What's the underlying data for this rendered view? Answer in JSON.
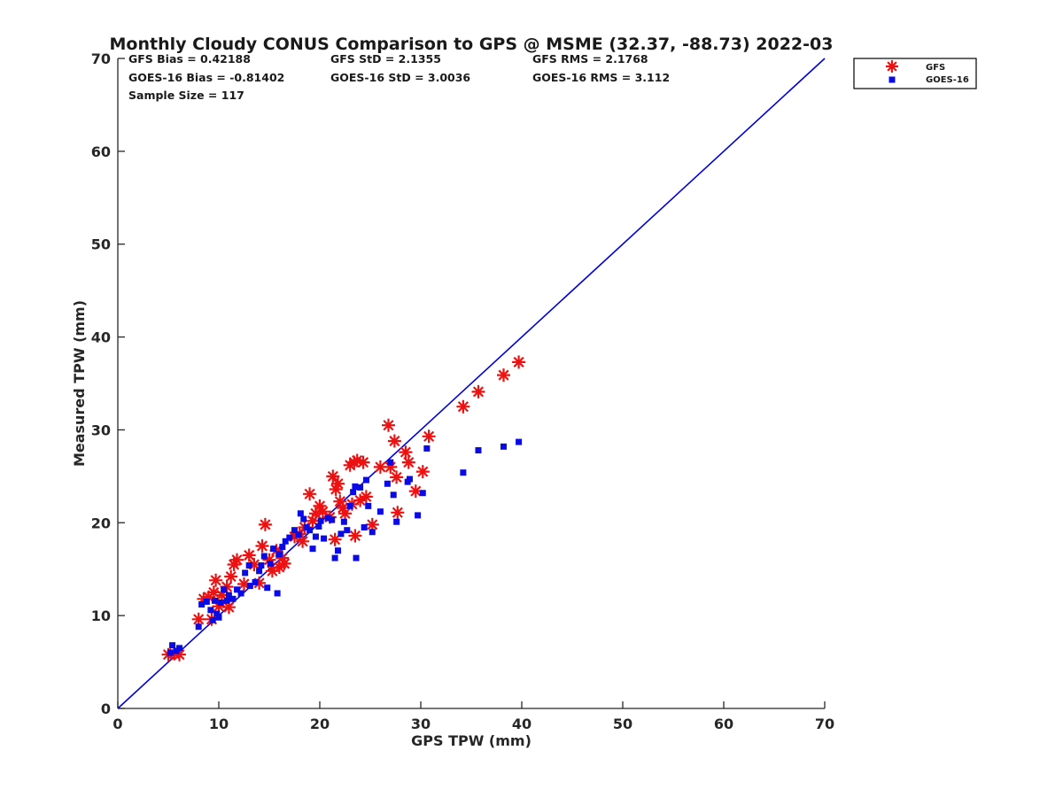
{
  "chart_data": {
    "type": "scatter",
    "title": "Monthly Cloudy CONUS Comparison to GPS @ MSME (32.37, -88.73) 2022-03",
    "xlabel": "GPS TPW (mm)",
    "ylabel": "Measured TPW (mm)",
    "xlim": [
      0,
      70
    ],
    "ylim": [
      0,
      70
    ],
    "xticks": [
      "0",
      "10",
      "20",
      "30",
      "40",
      "50",
      "60",
      "70"
    ],
    "yticks": [
      "0",
      "10",
      "20",
      "30",
      "40",
      "50",
      "60",
      "70"
    ],
    "grid": false,
    "legend_position": "outside-top-right",
    "stats": {
      "gfs_bias": "GFS Bias = 0.42188",
      "goes_bias": "GOES-16 Bias = -0.81402",
      "sample_size": "Sample Size = 117",
      "gfs_std": "GFS StD = 2.1355",
      "goes_std": "GOES-16 StD = 3.0036",
      "gfs_rms": "GFS RMS = 2.1768",
      "goes_rms": "GOES-16 RMS = 3.112"
    },
    "reference_line": {
      "x": [
        0,
        70
      ],
      "y": [
        0,
        70
      ],
      "color": "#0000dd"
    },
    "series": [
      {
        "name": "GFS",
        "marker": "asterisk",
        "color": "#ee1111",
        "points": [
          [
            5.0,
            5.8
          ],
          [
            5.6,
            5.9
          ],
          [
            6.1,
            5.8
          ],
          [
            8.0,
            9.6
          ],
          [
            8.5,
            11.8
          ],
          [
            9.0,
            12.0
          ],
          [
            9.3,
            9.6
          ],
          [
            9.5,
            12.5
          ],
          [
            9.7,
            13.8
          ],
          [
            10.0,
            11.0
          ],
          [
            10.3,
            12.2
          ],
          [
            10.8,
            13.1
          ],
          [
            11.0,
            10.9
          ],
          [
            11.2,
            14.2
          ],
          [
            11.5,
            15.5
          ],
          [
            11.8,
            16.0
          ],
          [
            12.5,
            13.4
          ],
          [
            13.0,
            16.5
          ],
          [
            13.5,
            15.5
          ],
          [
            14.0,
            13.5
          ],
          [
            14.3,
            17.5
          ],
          [
            14.6,
            19.8
          ],
          [
            15.0,
            16.0
          ],
          [
            15.3,
            14.8
          ],
          [
            15.7,
            17.0
          ],
          [
            16.0,
            15.2
          ],
          [
            16.3,
            16.2
          ],
          [
            16.5,
            15.6
          ],
          [
            17.5,
            18.5
          ],
          [
            18.0,
            18.8
          ],
          [
            18.3,
            18.0
          ],
          [
            18.5,
            19.5
          ],
          [
            19.0,
            23.1
          ],
          [
            19.3,
            20.2
          ],
          [
            19.6,
            21.0
          ],
          [
            20.0,
            21.8
          ],
          [
            20.3,
            21.2
          ],
          [
            21.0,
            20.6
          ],
          [
            21.3,
            25.0
          ],
          [
            21.5,
            18.2
          ],
          [
            21.6,
            23.6
          ],
          [
            21.8,
            24.2
          ],
          [
            22.0,
            22.3
          ],
          [
            22.3,
            21.6
          ],
          [
            22.5,
            21.0
          ],
          [
            23.0,
            26.2
          ],
          [
            23.2,
            22.0
          ],
          [
            23.4,
            26.5
          ],
          [
            23.5,
            18.6
          ],
          [
            23.7,
            26.7
          ],
          [
            24.0,
            22.4
          ],
          [
            24.3,
            26.5
          ],
          [
            24.6,
            22.8
          ],
          [
            25.2,
            19.8
          ],
          [
            26.0,
            26.0
          ],
          [
            26.8,
            30.5
          ],
          [
            27.0,
            26.0
          ],
          [
            27.4,
            28.8
          ],
          [
            27.6,
            24.9
          ],
          [
            27.7,
            21.1
          ],
          [
            28.5,
            27.6
          ],
          [
            28.8,
            26.5
          ],
          [
            29.5,
            23.4
          ],
          [
            30.2,
            25.5
          ],
          [
            30.8,
            29.3
          ],
          [
            34.2,
            32.5
          ],
          [
            35.7,
            34.1
          ],
          [
            38.2,
            35.9
          ],
          [
            39.7,
            37.3
          ]
        ]
      },
      {
        "name": "GOES-16",
        "marker": "square",
        "color": "#0a0ae6",
        "points": [
          [
            5.2,
            6.0
          ],
          [
            5.4,
            6.8
          ],
          [
            5.8,
            6.2
          ],
          [
            6.1,
            6.5
          ],
          [
            8.0,
            8.8
          ],
          [
            8.3,
            11.2
          ],
          [
            8.8,
            11.5
          ],
          [
            9.2,
            10.6
          ],
          [
            9.4,
            9.5
          ],
          [
            9.6,
            11.6
          ],
          [
            9.8,
            10.2
          ],
          [
            10.0,
            9.8
          ],
          [
            10.2,
            11.4
          ],
          [
            10.5,
            12.8
          ],
          [
            10.8,
            11.6
          ],
          [
            11.0,
            12.2
          ],
          [
            11.4,
            11.8
          ],
          [
            11.8,
            12.8
          ],
          [
            12.2,
            12.4
          ],
          [
            12.6,
            14.6
          ],
          [
            13.0,
            15.4
          ],
          [
            13.1,
            13.2
          ],
          [
            13.6,
            13.6
          ],
          [
            14.0,
            14.8
          ],
          [
            14.2,
            15.4
          ],
          [
            14.5,
            16.4
          ],
          [
            14.8,
            13.0
          ],
          [
            15.1,
            15.6
          ],
          [
            15.4,
            17.2
          ],
          [
            15.8,
            12.4
          ],
          [
            16.0,
            16.6
          ],
          [
            16.3,
            17.4
          ],
          [
            16.6,
            18.0
          ],
          [
            17.0,
            18.4
          ],
          [
            17.5,
            19.2
          ],
          [
            17.9,
            18.7
          ],
          [
            18.1,
            21.0
          ],
          [
            18.4,
            20.4
          ],
          [
            18.7,
            19.5
          ],
          [
            19.0,
            19.2
          ],
          [
            19.3,
            17.2
          ],
          [
            19.6,
            18.5
          ],
          [
            19.9,
            19.6
          ],
          [
            20.1,
            20.2
          ],
          [
            20.4,
            18.3
          ],
          [
            20.8,
            20.5
          ],
          [
            21.2,
            20.3
          ],
          [
            21.5,
            16.2
          ],
          [
            21.8,
            17.0
          ],
          [
            22.1,
            18.8
          ],
          [
            22.4,
            20.1
          ],
          [
            22.7,
            19.2
          ],
          [
            23.0,
            21.8
          ],
          [
            23.3,
            23.3
          ],
          [
            23.5,
            23.9
          ],
          [
            23.6,
            16.2
          ],
          [
            24.0,
            23.8
          ],
          [
            24.4,
            19.5
          ],
          [
            24.6,
            24.6
          ],
          [
            24.8,
            21.8
          ],
          [
            25.2,
            19.0
          ],
          [
            26.0,
            21.2
          ],
          [
            26.7,
            24.2
          ],
          [
            27.0,
            26.5
          ],
          [
            27.3,
            23.0
          ],
          [
            27.6,
            20.1
          ],
          [
            28.7,
            24.4
          ],
          [
            28.9,
            24.7
          ],
          [
            29.7,
            20.8
          ],
          [
            30.2,
            23.2
          ],
          [
            30.6,
            28.0
          ],
          [
            34.2,
            25.4
          ],
          [
            35.7,
            27.8
          ],
          [
            38.2,
            28.2
          ],
          [
            39.7,
            28.7
          ]
        ]
      }
    ]
  }
}
